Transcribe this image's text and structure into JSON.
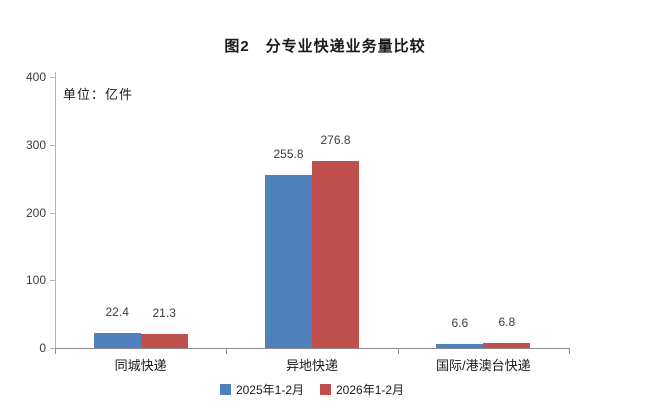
{
  "chart_data": {
    "type": "bar",
    "title": "图2　分专业快递业务量比较",
    "unit_label": "单位：亿件",
    "categories": [
      "同城快递",
      "异地快递",
      "国际/港澳台快递"
    ],
    "series": [
      {
        "name": "2025年1-2月",
        "color": "#4F81BD",
        "values": [
          22.4,
          255.8,
          6.6
        ]
      },
      {
        "name": "2026年1-2月",
        "color": "#C0504D",
        "values": [
          21.3,
          276.8,
          6.8
        ]
      }
    ],
    "ylim": [
      0,
      400
    ],
    "yticks": [
      0,
      100,
      200,
      300,
      400
    ],
    "xlabel": "",
    "ylabel": "",
    "grid": false,
    "legend_position": "bottom",
    "axis_colors": {
      "y_axis": "#BFB59B",
      "x_axis": "#8C8C8C"
    },
    "value_label_color": "#3D3D3D"
  }
}
